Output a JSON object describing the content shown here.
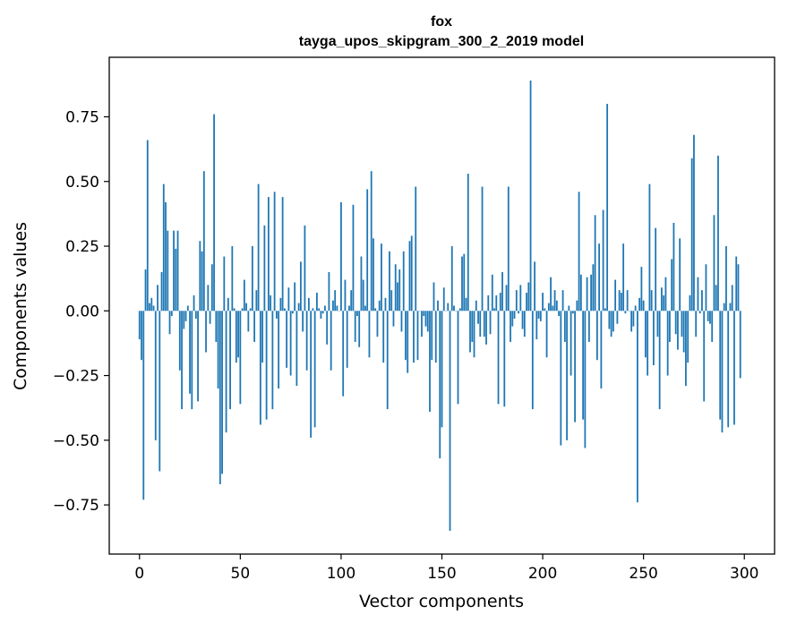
{
  "chart_data": {
    "type": "bar",
    "title": "fox",
    "subtitle": "tayga_upos_skipgram_300_2_2019 model",
    "xlabel": "Vector components",
    "ylabel": "Components values",
    "xlim": [
      -15,
      315
    ],
    "ylim": [
      -0.94,
      0.98
    ],
    "xticks": [
      0,
      50,
      100,
      150,
      200,
      250,
      300
    ],
    "xtick_labels": [
      "0",
      "50",
      "100",
      "150",
      "200",
      "250",
      "300"
    ],
    "yticks": [
      -0.75,
      -0.5,
      -0.25,
      0.0,
      0.25,
      0.5,
      0.75
    ],
    "ytick_labels": [
      "−0.75",
      "−0.50",
      "−0.25",
      "0.00",
      "0.25",
      "0.50",
      "0.75"
    ],
    "grid": false,
    "bar_color": "#1f77b4",
    "values": [
      -0.11,
      -0.19,
      -0.73,
      0.16,
      0.66,
      0.03,
      0.05,
      0.02,
      -0.5,
      0.1,
      -0.62,
      0.15,
      0.49,
      0.42,
      0.31,
      -0.09,
      -0.02,
      0.31,
      0.24,
      0.31,
      -0.23,
      -0.38,
      -0.07,
      -0.04,
      0.02,
      -0.32,
      -0.38,
      0.06,
      -0.03,
      -0.35,
      0.27,
      0.23,
      0.54,
      -0.16,
      0.1,
      -0.05,
      0.18,
      0.76,
      -0.12,
      -0.3,
      -0.67,
      -0.63,
      0.21,
      -0.47,
      0.05,
      -0.38,
      0.25,
      0.01,
      -0.2,
      -0.18,
      -0.36,
      0.01,
      0.12,
      0.03,
      -0.08,
      0.01,
      0.25,
      -0.12,
      0.08,
      0.49,
      -0.44,
      -0.2,
      0.33,
      -0.42,
      0.44,
      0.06,
      -0.38,
      0.46,
      -0.03,
      -0.3,
      0.05,
      0.44,
      0.01,
      -0.22,
      0.09,
      -0.25,
      -0.01,
      0.11,
      -0.29,
      0.03,
      0.19,
      -0.08,
      0.33,
      -0.23,
      0.05,
      -0.49,
      0.01,
      -0.45,
      0.07,
      0.01,
      -0.03,
      -0.01,
      0.02,
      -0.13,
      0.15,
      -0.23,
      0.04,
      0.08,
      0.02,
      0.0,
      0.42,
      -0.33,
      0.12,
      -0.22,
      0.02,
      0.08,
      0.41,
      -0.12,
      -0.02,
      -0.14,
      0.21,
      0.12,
      0.02,
      0.47,
      -0.18,
      0.54,
      0.28,
      0.01,
      -0.1,
      0.04,
      0.26,
      -0.2,
      0.05,
      -0.38,
      0.23,
      0.08,
      -0.06,
      0.18,
      0.11,
      0.16,
      -0.08,
      0.23,
      -0.19,
      -0.24,
      0.27,
      0.29,
      -0.2,
      0.48,
      -0.19,
      0.0,
      -0.1,
      -0.02,
      -0.06,
      -0.08,
      -0.39,
      -0.19,
      0.11,
      -0.2,
      0.04,
      -0.57,
      -0.45,
      0.09,
      0.0,
      0.03,
      -0.85,
      0.25,
      0.02,
      0.0,
      -0.36,
      0.01,
      0.21,
      0.22,
      0.05,
      0.53,
      -0.16,
      -0.12,
      -0.18,
      0.04,
      -0.05,
      -0.1,
      0.48,
      -0.1,
      -0.13,
      0.06,
      -0.09,
      0.14,
      0.01,
      0.06,
      -0.36,
      0.07,
      0.15,
      -0.37,
      0.1,
      0.48,
      -0.12,
      -0.06,
      -0.03,
      0.08,
      -0.01,
      0.1,
      -0.07,
      -0.1,
      0.07,
      0.11,
      0.89,
      -0.38,
      0.19,
      -0.11,
      -0.03,
      -0.04,
      0.07,
      0.01,
      -0.18,
      0.03,
      0.13,
      0.02,
      0.08,
      0.04,
      -0.02,
      -0.52,
      0.08,
      -0.12,
      -0.5,
      0.02,
      -0.25,
      -0.01,
      -0.43,
      0.04,
      0.46,
      0.14,
      -0.42,
      -0.53,
      0.13,
      -0.12,
      0.14,
      0.18,
      0.37,
      -0.19,
      0.26,
      -0.3,
      0.39,
      0.01,
      0.8,
      -0.07,
      -0.1,
      -0.08,
      0.12,
      -0.05,
      0.08,
      0.07,
      0.26,
      -0.01,
      0.08,
      0.0,
      -0.08,
      -0.06,
      0.02,
      -0.74,
      0.05,
      0.17,
      0.04,
      -0.18,
      -0.25,
      0.49,
      0.08,
      -0.21,
      0.32,
      -0.1,
      -0.38,
      0.09,
      0.06,
      0.13,
      -0.25,
      -0.12,
      0.2,
      0.34,
      -0.09,
      -0.15,
      0.28,
      -0.1,
      -0.16,
      -0.29,
      -0.2,
      0.06,
      0.59,
      0.68,
      -0.1,
      0.13,
      -0.01,
      0.08,
      -0.35,
      0.18,
      -0.04,
      -0.05,
      -0.12,
      0.37,
      0.1,
      0.6,
      -0.42,
      -0.47,
      0.03,
      0.25,
      -0.45,
      0.03,
      0.1,
      -0.44,
      0.21,
      0.18,
      -0.26
    ]
  }
}
